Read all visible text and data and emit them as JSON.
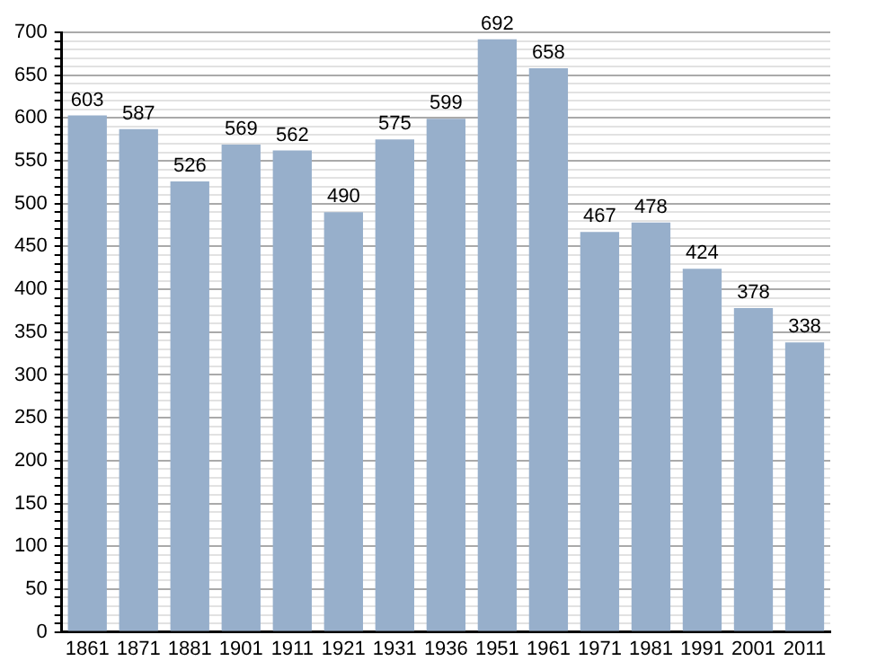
{
  "chart_data": {
    "type": "bar",
    "categories": [
      "1861",
      "1871",
      "1881",
      "1901",
      "1911",
      "1921",
      "1931",
      "1936",
      "1951",
      "1961",
      "1971",
      "1981",
      "1991",
      "2001",
      "2011"
    ],
    "values": [
      603,
      587,
      526,
      569,
      562,
      490,
      575,
      599,
      692,
      658,
      467,
      478,
      424,
      378,
      338
    ],
    "color": "#97afcb",
    "data_labels": true,
    "grid": "y",
    "legend": false,
    "ylim": [
      0,
      700
    ],
    "yticks": [
      0,
      {
        "value": 10,
        "label": null
      },
      {
        "value": 20,
        "label": null
      },
      {
        "value": 30,
        "label": null
      },
      {
        "value": 40,
        "label": null
      },
      50,
      {
        "value": 60,
        "label": null
      },
      {
        "value": 70,
        "label": null
      },
      {
        "value": 80,
        "label": null
      },
      {
        "value": 90,
        "label": null
      },
      100,
      {
        "value": 110,
        "label": null
      },
      {
        "value": 120,
        "label": null
      },
      {
        "value": 130,
        "label": null
      },
      {
        "value": 140,
        "label": null
      },
      150,
      {
        "value": 160,
        "label": null
      },
      {
        "value": 170,
        "label": null
      },
      {
        "value": 180,
        "label": null
      },
      {
        "value": 190,
        "label": null
      },
      200,
      {
        "value": 210,
        "label": null
      },
      {
        "value": 220,
        "label": null
      },
      {
        "value": 230,
        "label": null
      },
      {
        "value": 240,
        "label": null
      },
      250,
      {
        "value": 260,
        "label": null
      },
      {
        "value": 270,
        "label": null
      },
      {
        "value": 280,
        "label": null
      },
      {
        "value": 290,
        "label": null
      },
      300,
      {
        "value": 310,
        "label": null
      },
      {
        "value": 320,
        "label": null
      },
      {
        "value": 330,
        "label": null
      },
      {
        "value": 340,
        "label": null
      },
      350,
      {
        "value": 360,
        "label": null
      },
      {
        "value": 370,
        "label": null
      },
      {
        "value": 380,
        "label": null
      },
      {
        "value": 390,
        "label": null
      },
      400,
      {
        "value": 410,
        "label": null
      },
      {
        "value": 420,
        "label": null
      },
      {
        "value": 430,
        "label": null
      },
      {
        "value": 440,
        "label": null
      },
      450,
      {
        "value": 460,
        "label": null
      },
      {
        "value": 470,
        "label": null
      },
      {
        "value": 480,
        "label": null
      },
      {
        "value": 490,
        "label": null
      },
      500,
      {
        "value": 510,
        "label": null
      },
      {
        "value": 520,
        "label": null
      },
      {
        "value": 530,
        "label": null
      },
      {
        "value": 540,
        "label": null
      },
      550,
      {
        "value": 560,
        "label": null
      },
      {
        "value": 570,
        "label": null
      },
      {
        "value": 580,
        "label": null
      },
      {
        "value": 590,
        "label": null
      },
      600,
      {
        "value": 610,
        "label": null
      },
      {
        "value": 620,
        "label": null
      },
      {
        "value": 630,
        "label": null
      },
      {
        "value": 640,
        "label": null
      },
      650,
      {
        "value": 660,
        "label": null
      },
      {
        "value": 670,
        "label": null
      },
      {
        "value": 680,
        "label": null
      },
      {
        "value": 690,
        "label": null
      },
      700
    ]
  }
}
